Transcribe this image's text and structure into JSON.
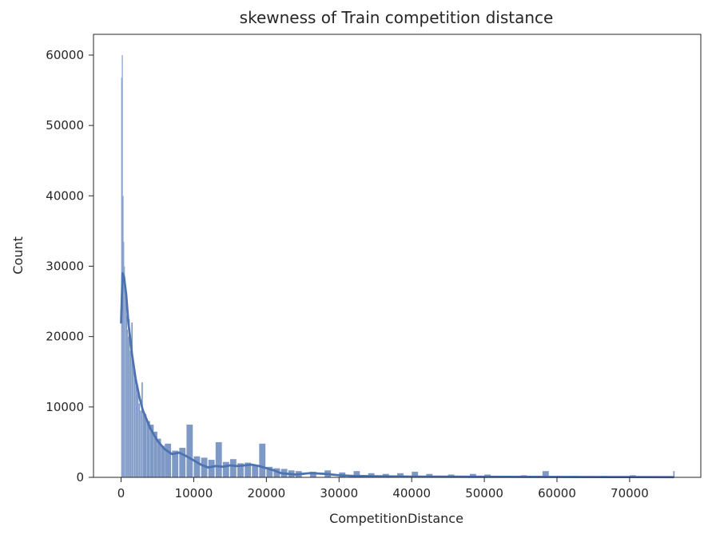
{
  "chart_data": {
    "type": "bar",
    "subtype": "histogram-with-kde",
    "title": "skewness of Train competition distance",
    "xlabel": "CompetitionDistance",
    "ylabel": "Count",
    "xlim": [
      -3800,
      79800
    ],
    "ylim": [
      0,
      60000
    ],
    "x_ticks": [
      0,
      10000,
      20000,
      30000,
      40000,
      50000,
      60000,
      70000
    ],
    "y_ticks": [
      0,
      10000,
      20000,
      30000,
      40000,
      50000,
      60000
    ],
    "grid": false,
    "legend": "none",
    "bar_color": "#4C72B0",
    "bar_edge": "#ffffff",
    "kde_color": "#4C72B0",
    "bins": {
      "x": [
        0,
        100,
        200,
        300,
        400,
        500,
        600,
        700,
        800,
        900,
        1000,
        1200,
        1400,
        1600,
        1800,
        2000,
        2200,
        2400,
        2600,
        2800,
        3000,
        3500,
        4000,
        4500,
        5000,
        5500,
        6000,
        7000,
        8000,
        9000,
        10000,
        11000,
        12000,
        13000,
        14000,
        15000,
        16000,
        17000,
        18000,
        19000,
        20000,
        21000,
        22000,
        23000,
        24000,
        26000,
        28000,
        30000,
        32000,
        34000,
        36000,
        38000,
        40000,
        42000,
        45000,
        48000,
        50000,
        55000,
        58000,
        62000,
        66000,
        70000,
        76000
      ],
      "count": [
        56800,
        60000,
        40000,
        33500,
        30000,
        27000,
        25000,
        23000,
        21000,
        20000,
        22500,
        18000,
        22000,
        16000,
        14000,
        13000,
        12000,
        10500,
        9500,
        13500,
        9000,
        8000,
        7500,
        6500,
        5500,
        4500,
        4800,
        3800,
        4200,
        7500,
        3000,
        2800,
        2500,
        5000,
        2200,
        2600,
        2000,
        2100,
        1800,
        4800,
        1500,
        1300,
        1200,
        1000,
        900,
        800,
        1000,
        700,
        900,
        600,
        500,
        600,
        800,
        500,
        400,
        500,
        400,
        300,
        900,
        200,
        200,
        300,
        900
      ]
    },
    "kde": {
      "x": [
        0,
        200,
        400,
        700,
        1000,
        1500,
        2000,
        2500,
        3000,
        4000,
        5000,
        6000,
        7000,
        8000,
        9000,
        10000,
        11000,
        12000,
        13000,
        14000,
        15000,
        16000,
        17000,
        18000,
        19000,
        20000,
        21000,
        22000,
        23000,
        24000,
        26000,
        28000,
        30000,
        32000,
        35000,
        40000,
        45000,
        50000,
        60000,
        70000,
        76000
      ],
      "y": [
        22000,
        29000,
        28500,
        26000,
        22000,
        17500,
        14000,
        11500,
        9500,
        7000,
        5200,
        4000,
        3300,
        3500,
        3000,
        2400,
        1800,
        1400,
        1600,
        1500,
        1700,
        1600,
        1700,
        1800,
        1600,
        1300,
        1000,
        600,
        500,
        400,
        600,
        500,
        300,
        200,
        150,
        100,
        90,
        80,
        60,
        40,
        30
      ]
    }
  }
}
